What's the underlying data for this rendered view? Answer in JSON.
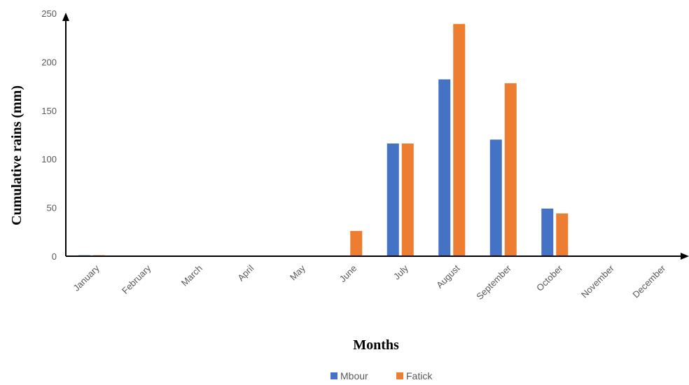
{
  "chart_data": {
    "type": "bar",
    "xlabel": "Months",
    "ylabel": "Cumulative rains (mm)",
    "ylim": [
      0,
      250
    ],
    "yticks": [
      0,
      50,
      100,
      150,
      200,
      250
    ],
    "categories": [
      "January",
      "February",
      "March",
      "April",
      "May",
      "June",
      "July",
      "August",
      "September",
      "October",
      "November",
      "December"
    ],
    "series": [
      {
        "name": "Mbour",
        "color": "#4472C4",
        "values": [
          1,
          0,
          0,
          0,
          0,
          0,
          116,
          182,
          120,
          49,
          0,
          0
        ]
      },
      {
        "name": "Fatick",
        "color": "#ED7D31",
        "values": [
          1,
          0,
          0,
          0,
          0,
          26,
          116,
          239,
          178,
          44,
          0,
          0
        ]
      }
    ],
    "legend_position": "bottom",
    "grid": false
  }
}
